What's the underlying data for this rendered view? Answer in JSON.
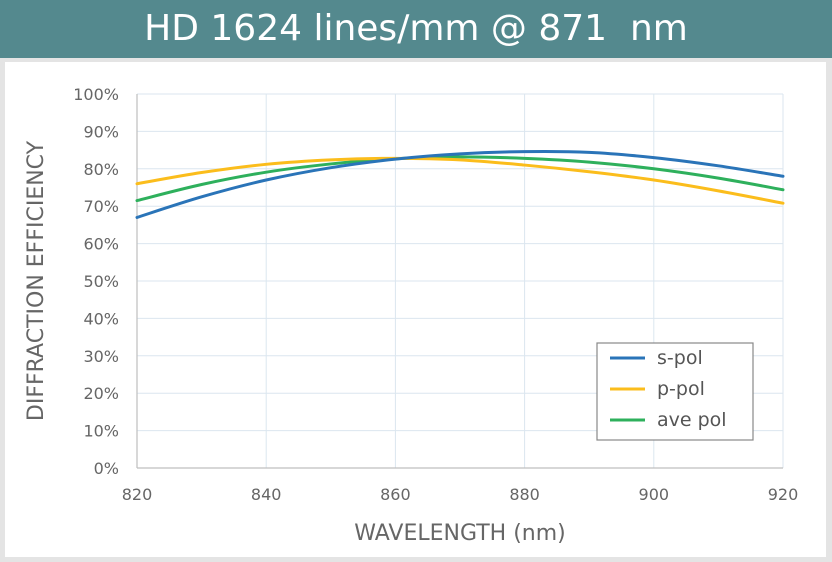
{
  "title": "HD 1624 lines/mm @ 871  nm",
  "colors": {
    "title_bar": "#54898e",
    "grid": "#dbe6ef",
    "s_pol": "#2a74b8",
    "p_pol": "#fbbd1c",
    "ave_pol": "#2eb05c"
  },
  "chart_data": {
    "type": "line",
    "title": "HD 1624 lines/mm @ 871  nm",
    "xlabel": "WAVELENGTH (nm)",
    "ylabel": "DIFFRACTION EFFICIENCY",
    "xlim": [
      820,
      920
    ],
    "ylim": [
      0,
      100
    ],
    "x_ticks": [
      820,
      840,
      860,
      880,
      900,
      920
    ],
    "y_ticks": [
      0,
      10,
      20,
      30,
      40,
      50,
      60,
      70,
      80,
      90,
      100
    ],
    "y_tick_labels": [
      "0%",
      "10%",
      "20%",
      "30%",
      "40%",
      "50%",
      "60%",
      "70%",
      "80%",
      "90%",
      "100%"
    ],
    "grid": true,
    "legend_position": "bottom-right",
    "x": [
      820,
      830,
      840,
      850,
      860,
      870,
      880,
      890,
      900,
      910,
      920
    ],
    "series": [
      {
        "name": "s-pol",
        "color": "#2a74b8",
        "values": [
          67.0,
          72.5,
          77.0,
          80.3,
          82.6,
          84.0,
          84.6,
          84.4,
          83.0,
          80.8,
          78.0
        ]
      },
      {
        "name": "p-pol",
        "color": "#fbbd1c",
        "values": [
          76.0,
          79.0,
          81.2,
          82.4,
          82.8,
          82.4,
          81.0,
          79.2,
          77.0,
          74.1,
          70.8
        ]
      },
      {
        "name": "ave pol",
        "color": "#2eb05c",
        "values": [
          71.5,
          75.8,
          79.1,
          81.3,
          82.7,
          83.2,
          82.8,
          81.8,
          80.0,
          77.5,
          74.4
        ]
      }
    ]
  }
}
